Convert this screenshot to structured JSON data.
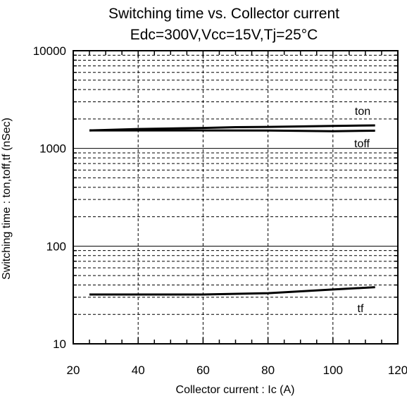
{
  "chart_data": {
    "type": "line",
    "title": "Switching time vs. Collector current",
    "subtitle": "Edc=300V,Vcc=15V,Tj=25°C",
    "xlabel": "Collector current : Ic (A)",
    "ylabel": "Switching time : ton,toff,tf (nSec)",
    "xlim": [
      20,
      120
    ],
    "ylim": [
      10,
      10000
    ],
    "yscale": "log",
    "grid": true,
    "x_ticks": [
      "20",
      "40",
      "60",
      "80",
      "100",
      "120"
    ],
    "y_ticks": [
      "10",
      "100",
      "1000",
      "10000"
    ],
    "series": [
      {
        "name": "ton",
        "x": [
          25,
          40,
          60,
          70,
          80,
          100,
          113
        ],
        "y": [
          1530,
          1580,
          1620,
          1650,
          1660,
          1700,
          1720
        ]
      },
      {
        "name": "toff",
        "x": [
          25,
          40,
          60,
          80,
          100,
          113
        ],
        "y": [
          1530,
          1530,
          1530,
          1525,
          1500,
          1520
        ]
      },
      {
        "name": "tf",
        "x": [
          25,
          40,
          60,
          80,
          100,
          113
        ],
        "y": [
          32,
          32,
          32,
          33,
          36,
          38
        ]
      }
    ]
  }
}
